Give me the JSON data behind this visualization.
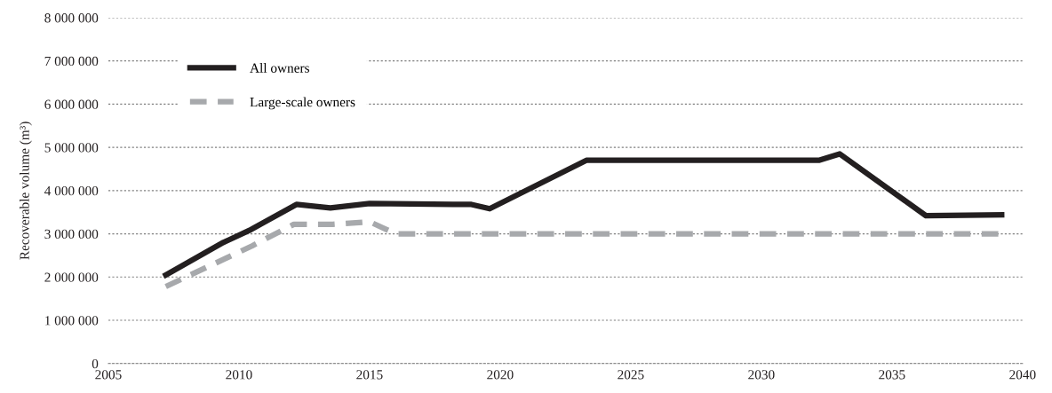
{
  "chart_data": {
    "type": "line",
    "ylabel": "Recoverable volume (m³)",
    "xlim": [
      2005,
      2040
    ],
    "xticks": [
      2005,
      2010,
      2015,
      2020,
      2025,
      2030,
      2035,
      2040
    ],
    "ylim": [
      0,
      8000000
    ],
    "yticks": [
      {
        "value": 0,
        "label": "0"
      },
      {
        "value": 1000000,
        "label": "1 000 000"
      },
      {
        "value": 2000000,
        "label": "2 000 000"
      },
      {
        "value": 3000000,
        "label": "3 000 000"
      },
      {
        "value": 4000000,
        "label": "4 000 000"
      },
      {
        "value": 5000000,
        "label": "5 000 000"
      },
      {
        "value": 6000000,
        "label": "6 000 000"
      },
      {
        "value": 7000000,
        "label": "7 000 000"
      },
      {
        "value": 8000000,
        "label": "8 000 000"
      }
    ],
    "grid": "y",
    "legend": "top left",
    "marker": "none",
    "series": [
      {
        "name": "All owners",
        "color": "#231f20",
        "line_style": "solid",
        "x": [
          2007.2,
          2009.4,
          2010.4,
          2012.2,
          2013.5,
          2015.0,
          2018.9,
          2019.6,
          2023.3,
          2032.2,
          2033.0,
          2036.3,
          2039.2
        ],
        "values": [
          2050000,
          2800000,
          3080000,
          3680000,
          3600000,
          3700000,
          3680000,
          3580000,
          4700000,
          4700000,
          4850000,
          3420000,
          3440000
        ]
      },
      {
        "name": "Large-scale owners",
        "color": "#a7a9ac",
        "line_style": "dashed",
        "x": [
          2007.2,
          2010.5,
          2012.1,
          2013.6,
          2015.0,
          2016.0,
          2039.3
        ],
        "values": [
          1780000,
          2720000,
          3220000,
          3220000,
          3280000,
          3000000,
          3000000
        ]
      }
    ]
  }
}
